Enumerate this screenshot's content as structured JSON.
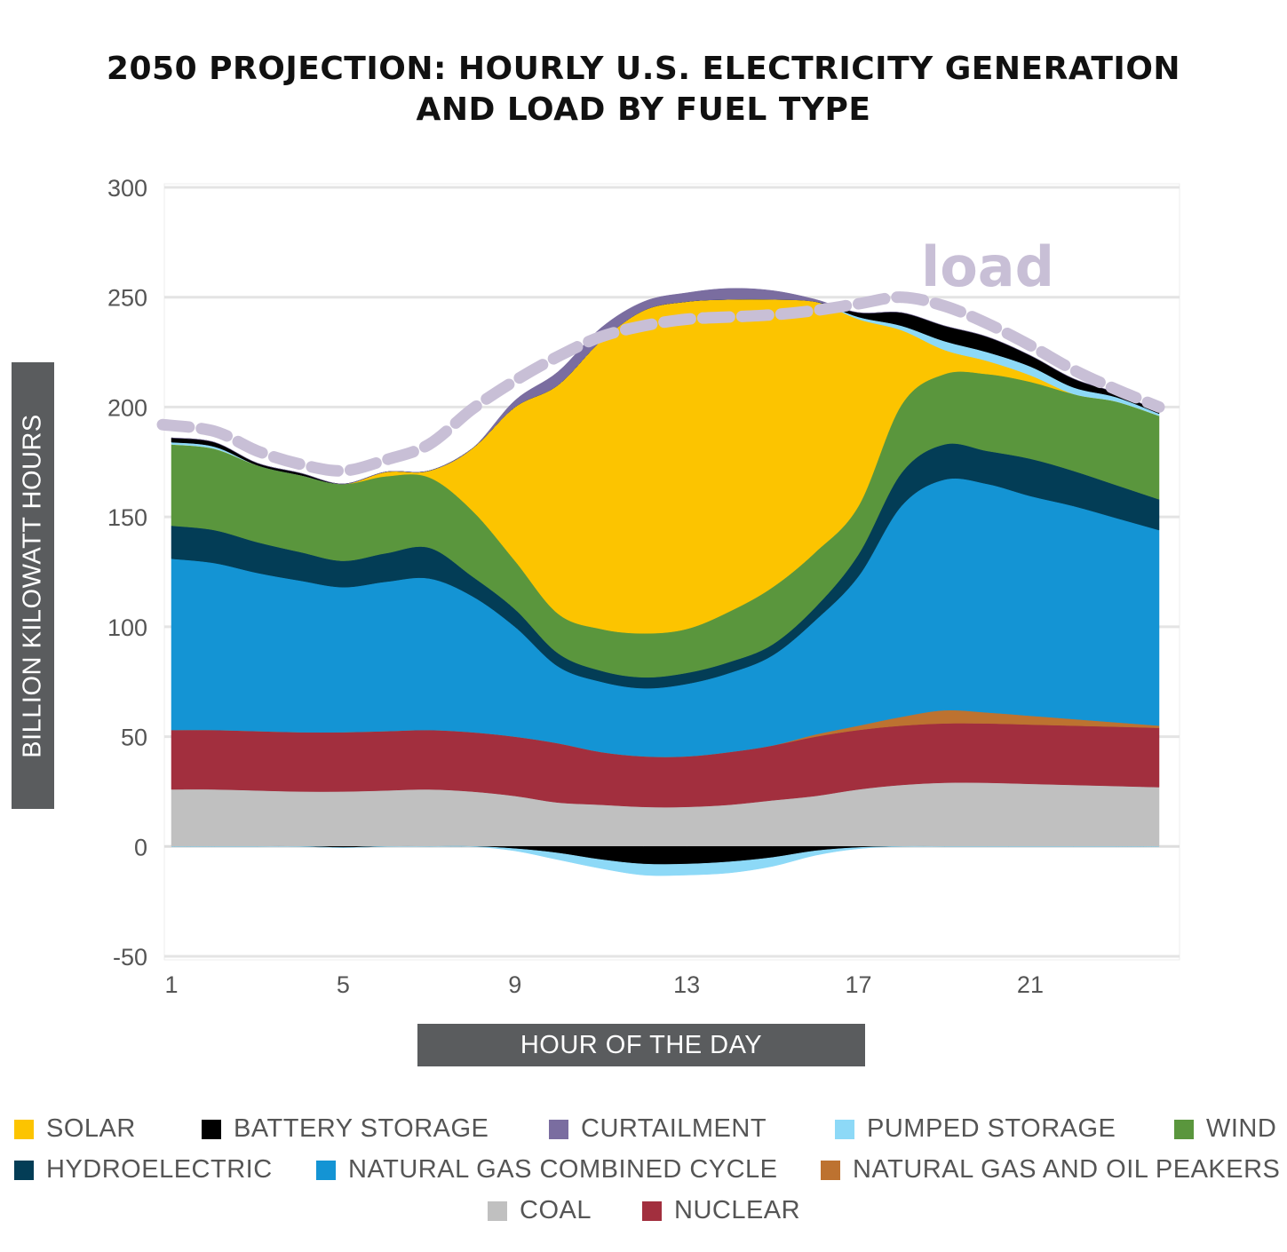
{
  "title_lines": [
    "2050 PROJECTION: HOURLY U.S. ELECTRICITY GENERATION",
    "AND LOAD BY FUEL TYPE"
  ],
  "chart_data": {
    "type": "area",
    "stacked": true,
    "title": "2050 PROJECTION: HOURLY U.S. ELECTRICITY GENERATION AND LOAD BY FUEL TYPE",
    "xlabel": "HOUR OF THE DAY",
    "ylabel": "BILLION KILOWATT HOURS",
    "x": [
      1,
      2,
      3,
      4,
      5,
      6,
      7,
      8,
      9,
      10,
      11,
      12,
      13,
      14,
      15,
      16,
      17,
      18,
      19,
      20,
      21,
      22,
      23,
      24
    ],
    "x_ticks": [
      1,
      5,
      9,
      13,
      17,
      21
    ],
    "y_ticks": [
      300,
      250,
      200,
      150,
      100,
      50,
      0,
      -50
    ],
    "ylim": [
      -50,
      300
    ],
    "xlim": [
      0.6,
      24.6
    ],
    "grid": true,
    "legend_position": "bottom",
    "load_annotation": "load",
    "series": [
      {
        "name": "COAL",
        "color": "#c0c0c0",
        "values": [
          26,
          26,
          25.5,
          25,
          25,
          25.5,
          26,
          25,
          23,
          20,
          19,
          18,
          18,
          19,
          21,
          23,
          26,
          28,
          29,
          29,
          28.5,
          28,
          27.5,
          27
        ]
      },
      {
        "name": "NUCLEAR",
        "color": "#a22f3e",
        "values": [
          27,
          27,
          27,
          27,
          27,
          27,
          27,
          27,
          27,
          27,
          24,
          23,
          23,
          24,
          25,
          27,
          27,
          27,
          27,
          27,
          27,
          27,
          27,
          27
        ]
      },
      {
        "name": "NATURAL GAS AND OIL PEAKERS",
        "color": "#bd7230",
        "values": [
          0,
          0,
          0,
          0,
          0,
          0,
          0,
          0,
          0,
          0,
          0,
          0,
          0,
          0,
          0,
          1,
          2,
          4,
          6,
          5,
          4,
          3,
          2,
          1
        ]
      },
      {
        "name": "NATURAL GAS COMBINED CYCLE",
        "color": "#1494d4",
        "values": [
          78,
          76,
          72,
          69,
          66,
          68,
          69,
          62,
          50,
          35,
          32,
          31,
          33,
          36,
          41,
          52,
          68,
          96,
          105,
          104,
          100,
          97,
          93,
          89
        ]
      },
      {
        "name": "HYDROELECTRIC",
        "color": "#033d56",
        "values": [
          15,
          15,
          14,
          13,
          12,
          13,
          14,
          9,
          8,
          6,
          5,
          5,
          5,
          5,
          5,
          6,
          10,
          15,
          16,
          15,
          17,
          16,
          15,
          14
        ]
      },
      {
        "name": "WIND",
        "color": "#5a963d",
        "values": [
          37,
          37,
          35,
          35,
          35,
          35,
          32,
          30,
          22,
          18,
          19,
          20,
          20,
          23,
          26,
          25,
          22,
          31,
          32,
          35,
          35,
          35,
          38,
          38
        ]
      },
      {
        "name": "SOLAR",
        "color": "#fcc400",
        "values": [
          0,
          0,
          0,
          0,
          0,
          2,
          3,
          28,
          70,
          104,
          131,
          147,
          149,
          142,
          131,
          114,
          85,
          34,
          11,
          6,
          3,
          0,
          0,
          0
        ]
      },
      {
        "name": "PUMPED STORAGE",
        "color": "#8dd9f7",
        "values": [
          1,
          1,
          0,
          0,
          0,
          0,
          0,
          0,
          0,
          0,
          0,
          0,
          0,
          0,
          0,
          0,
          1,
          2,
          4,
          4,
          4,
          3,
          2,
          1
        ]
      },
      {
        "name": "BATTERY STORAGE",
        "color": "#000000",
        "values": [
          2,
          2,
          1,
          1,
          0,
          0,
          0,
          0,
          0,
          0,
          0,
          0,
          0,
          0,
          0,
          0,
          2,
          6,
          7,
          7,
          5,
          4,
          2,
          1
        ]
      },
      {
        "name": "CURTAILMENT",
        "color": "#7a6da0",
        "values": [
          0,
          0,
          0,
          0,
          0,
          0,
          0,
          0,
          3,
          6,
          6,
          4,
          4,
          5,
          4,
          1,
          0,
          0,
          0,
          0,
          0,
          0,
          0,
          0
        ]
      }
    ],
    "negative_series": [
      {
        "name": "BATTERY STORAGE",
        "color": "#000000",
        "values": [
          0,
          0,
          0,
          0,
          -0.5,
          0,
          0,
          0,
          -1,
          -3,
          -6,
          -8,
          -8,
          -7,
          -5,
          -2,
          -0.5,
          0,
          0,
          0,
          0,
          0,
          0,
          0
        ]
      },
      {
        "name": "PUMPED STORAGE",
        "color": "#8dd9f7",
        "values": [
          0,
          0,
          0,
          0,
          0,
          0,
          0,
          0,
          -1,
          -3,
          -4,
          -5,
          -5,
          -5,
          -4,
          -2,
          -0.5,
          0,
          0,
          0,
          0,
          0,
          0,
          0
        ]
      }
    ],
    "load": {
      "name": "load",
      "color": "#c8bfd6",
      "values": [
        192,
        189,
        180,
        174,
        171,
        176,
        183,
        199,
        212,
        223,
        232,
        237,
        240,
        241,
        242,
        244,
        247,
        250,
        246,
        238,
        228,
        217,
        208,
        200
      ]
    }
  },
  "legend": [
    {
      "label": "SOLAR",
      "color": "#fcc400"
    },
    {
      "label": "BATTERY STORAGE",
      "color": "#000000"
    },
    {
      "label": "CURTAILMENT",
      "color": "#7a6da0"
    },
    {
      "label": "PUMPED STORAGE",
      "color": "#8dd9f7"
    },
    {
      "label": "WIND",
      "color": "#5a963d"
    },
    {
      "label": "HYDROELECTRIC",
      "color": "#033d56"
    },
    {
      "label": "NATURAL GAS COMBINED CYCLE",
      "color": "#1494d4"
    },
    {
      "label": "NATURAL GAS AND OIL PEAKERS",
      "color": "#bd7230"
    },
    {
      "label": "COAL",
      "color": "#c0c0c0"
    },
    {
      "label": "NUCLEAR",
      "color": "#a22f3e"
    }
  ]
}
